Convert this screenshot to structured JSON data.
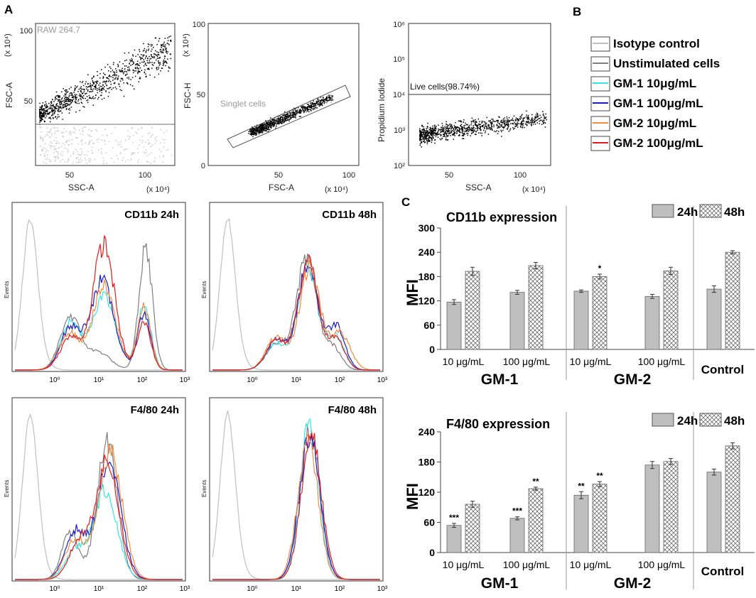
{
  "panels": {
    "a": "A",
    "b": "B",
    "c": "C"
  },
  "flow": {
    "p1": {
      "label": "RAW 264.7",
      "xlabel": "SSC-A",
      "ylabel": "FSC-A",
      "xunit": "(x 10⁴)",
      "yunit": "(x 10⁴)",
      "xticks": [
        "50",
        "100"
      ],
      "yticks": [
        "50",
        "100"
      ]
    },
    "p2": {
      "label": "Singlet cells",
      "xlabel": "FSC-A",
      "ylabel": "FSC-H",
      "xunit": "(x 10⁴)",
      "yunit": "(x 10⁴)",
      "xticks": [
        "50",
        "100"
      ],
      "yticks": [
        "0",
        "50",
        "100"
      ]
    },
    "p3": {
      "label": "Live cells(98.74%)",
      "xlabel": "SSC-A",
      "ylabel": "Propidium Iodide",
      "xunit": "(x 10⁴)",
      "xticks": [
        "50",
        "100"
      ],
      "yticks": [
        "10²",
        "10³",
        "10⁴",
        "10⁵",
        "10⁶"
      ]
    }
  },
  "legend": {
    "items": [
      {
        "label": "Isotype control",
        "color": "#bfbfbf"
      },
      {
        "label": "Unstimulated cells",
        "color": "#7f7f7f"
      },
      {
        "label": "GM-1 10μg/mL",
        "color": "#33e6e6"
      },
      {
        "label": "GM-1 100μg/mL",
        "color": "#1a1acc"
      },
      {
        "label": "GM-2 10μg/mL",
        "color": "#f28c40"
      },
      {
        "label": "GM-2 100μg/mL",
        "color": "#e61a1a"
      }
    ]
  },
  "histograms": {
    "titles": [
      "CD11b 24h",
      "CD11b 48h",
      "F4/80 24h",
      "F4/80 48h"
    ],
    "ylabel": "Events",
    "xticks": [
      "10⁰",
      "10¹",
      "10²",
      "10³"
    ]
  },
  "chart_data": [
    {
      "type": "bar",
      "title": "CD11b expression",
      "ylabel": "MFI",
      "ylim": [
        0,
        300
      ],
      "yticks": [
        "0",
        "60",
        "120",
        "180",
        "240",
        "300"
      ],
      "categories": [
        "10 μg/mL",
        "100 μg/mL",
        "10 μg/mL",
        "100 μg/mL",
        ""
      ],
      "groups": [
        "GM-1",
        "GM-2",
        "Control"
      ],
      "series": [
        {
          "name": "24h",
          "values": [
            117,
            141,
            144,
            131,
            149
          ],
          "errors": [
            6,
            5,
            3,
            5,
            8
          ],
          "marks": [
            "",
            "",
            "",
            "",
            ""
          ]
        },
        {
          "name": "48h",
          "values": [
            193,
            207,
            180,
            194,
            240
          ],
          "errors": [
            10,
            8,
            6,
            9,
            4
          ],
          "marks": [
            "",
            "",
            "*",
            "",
            ""
          ]
        }
      ]
    },
    {
      "type": "bar",
      "title": "F4/80 expression",
      "ylabel": "MFI",
      "ylim": [
        0,
        240
      ],
      "yticks": [
        "0",
        "60",
        "120",
        "180",
        "240"
      ],
      "categories": [
        "10 μg/mL",
        "100 μg/mL",
        "10 μg/mL",
        "100 μg/mL",
        ""
      ],
      "groups": [
        "GM-1",
        "GM-2",
        "Control"
      ],
      "series": [
        {
          "name": "24h",
          "values": [
            54,
            68,
            114,
            174,
            160
          ],
          "errors": [
            4,
            3,
            7,
            7,
            6
          ],
          "marks": [
            "***",
            "***",
            "**",
            "",
            ""
          ]
        },
        {
          "name": "48h",
          "values": [
            96,
            127,
            136,
            181,
            212
          ],
          "errors": [
            6,
            3,
            5,
            6,
            6
          ],
          "marks": [
            "",
            "**",
            "**",
            "",
            ""
          ]
        }
      ]
    }
  ]
}
